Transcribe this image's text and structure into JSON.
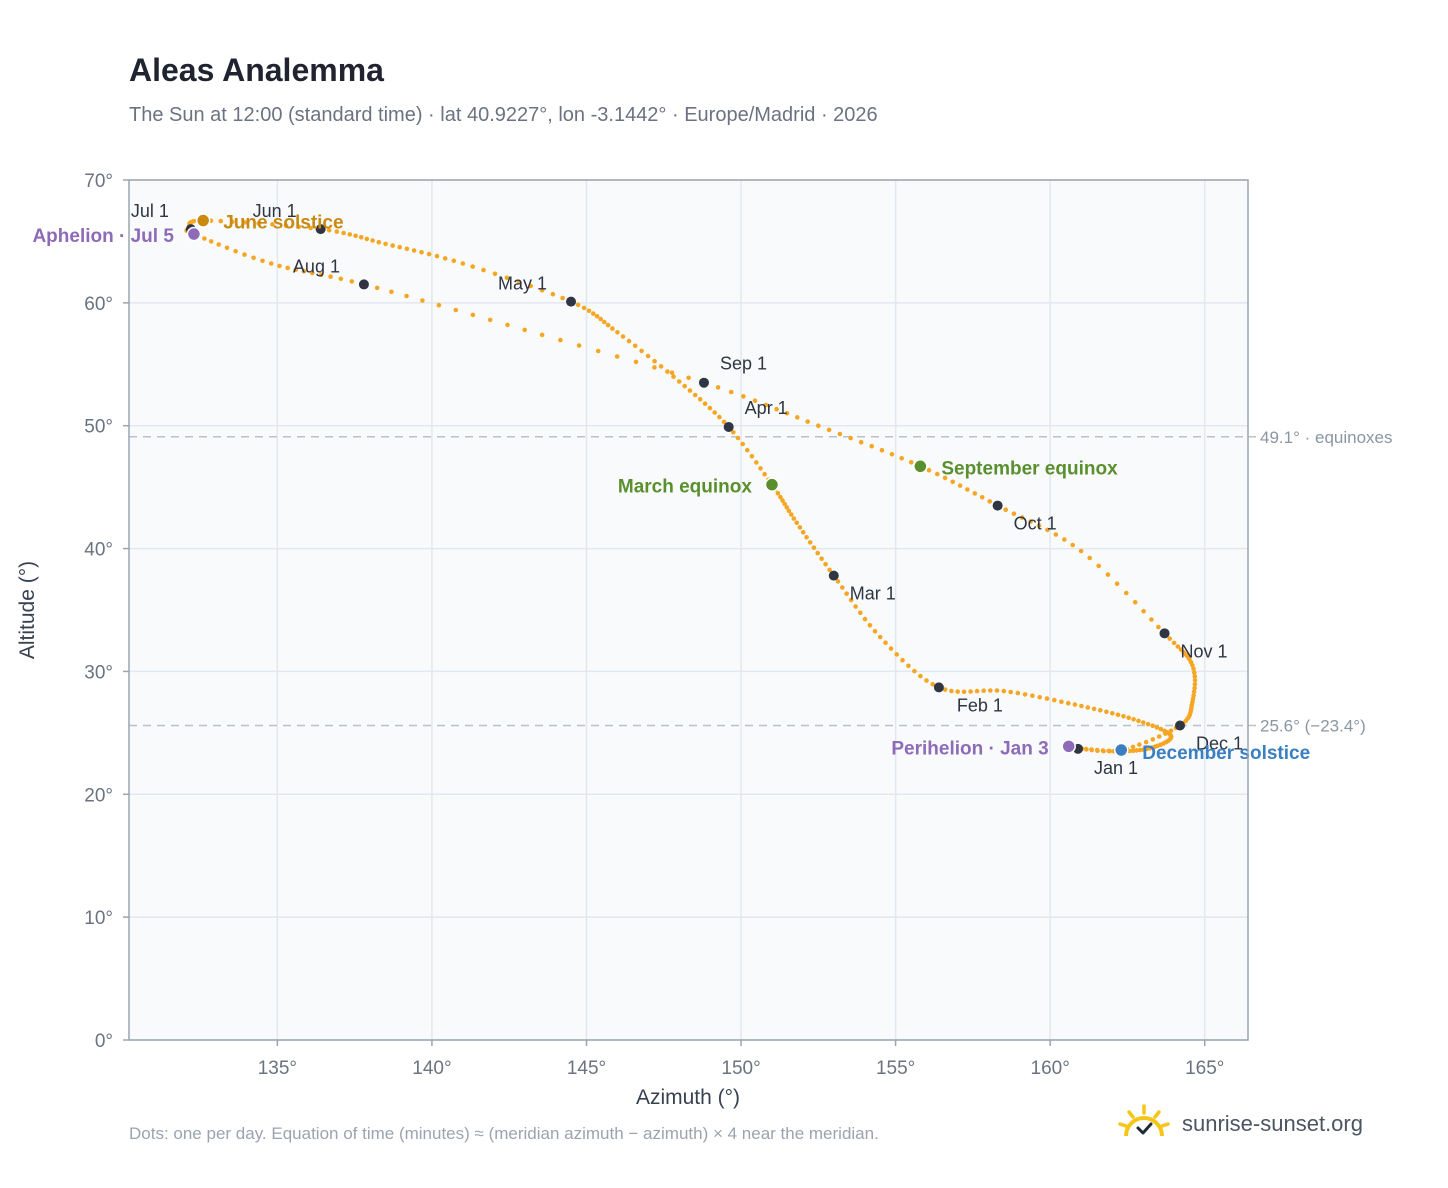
{
  "title": "Aleas Analemma",
  "subtitle": "The Sun at 12:00 (standard time) · lat 40.9227°, lon -3.1442° · Europe/Madrid · 2026",
  "footnote": "Dots: one per day. Equation of time (minutes) ≈ (meridian azimuth − azimuth) × 4 near the meridian.",
  "brand": {
    "name": "sunrise-sunset.org",
    "icon": "sun-logo-icon"
  },
  "colors": {
    "curve": "#f5a623",
    "month_marker": "#2f3542",
    "solstice_june": "#c98a12",
    "solstice_december": "#3a7fc1",
    "equinox": "#5a8f2e",
    "apsis": "#8e6bb8",
    "reference_line": "#b8c2cc",
    "plot_background": "#f8fafc",
    "plot_border": "#9aa5b1",
    "grid": "#e3e8ee"
  },
  "chart_data": {
    "type": "scatter",
    "xlabel": "Azimuth (°)",
    "ylabel": "Altitude (°)",
    "xlim": [
      130.2,
      166.4
    ],
    "ylim": [
      0,
      70
    ],
    "xticks": [
      135,
      140,
      145,
      150,
      155,
      160,
      165
    ],
    "xtick_labels": [
      "135°",
      "140°",
      "145°",
      "150°",
      "155°",
      "160°",
      "165°"
    ],
    "yticks": [
      0,
      10,
      20,
      30,
      40,
      50,
      60,
      70
    ],
    "ytick_labels": [
      "0°",
      "10°",
      "20°",
      "30°",
      "40°",
      "50°",
      "60°",
      "70°"
    ],
    "grid": true,
    "series": [
      {
        "points_per_day": true,
        "key_points": [
          [
            160.8,
            23.8
          ],
          [
            162.2,
            23.5
          ],
          [
            163.3,
            23.8
          ],
          [
            163.9,
            24.8
          ],
          [
            162.7,
            26.1
          ],
          [
            160.8,
            27.3
          ],
          [
            158.5,
            28.4
          ],
          [
            156.4,
            28.7
          ],
          [
            154.5,
            32.8
          ],
          [
            153.0,
            37.8
          ],
          [
            151.8,
            42.1
          ],
          [
            151.0,
            45.2
          ],
          [
            149.6,
            49.9
          ],
          [
            148.0,
            53.6
          ],
          [
            146.0,
            57.6
          ],
          [
            144.5,
            60.1
          ],
          [
            141.0,
            63.2
          ],
          [
            138.5,
            64.8
          ],
          [
            136.4,
            66.0
          ],
          [
            132.6,
            66.7
          ],
          [
            132.2,
            66.0
          ],
          [
            132.3,
            65.6
          ],
          [
            134.8,
            63.2
          ],
          [
            137.8,
            61.5
          ],
          [
            143.0,
            57.8
          ],
          [
            148.8,
            53.5
          ],
          [
            152.5,
            50.0
          ],
          [
            155.8,
            46.7
          ],
          [
            158.3,
            43.5
          ],
          [
            161.0,
            39.8
          ],
          [
            163.7,
            33.1
          ],
          [
            164.6,
            30.5
          ],
          [
            164.6,
            27.5
          ],
          [
            164.2,
            25.6
          ],
          [
            162.3,
            23.6
          ],
          [
            160.8,
            23.8
          ]
        ]
      }
    ],
    "month_markers": [
      {
        "label": "Jan 1",
        "az": 160.9,
        "alt": 23.7
      },
      {
        "label": "Feb 1",
        "az": 156.4,
        "alt": 28.7
      },
      {
        "label": "Mar 1",
        "az": 153.0,
        "alt": 37.8
      },
      {
        "label": "Apr 1",
        "az": 149.6,
        "alt": 49.9
      },
      {
        "label": "May 1",
        "az": 144.5,
        "alt": 60.1
      },
      {
        "label": "Jun 1",
        "az": 136.4,
        "alt": 66.0
      },
      {
        "label": "Jul 1",
        "az": 132.2,
        "alt": 66.0
      },
      {
        "label": "Aug 1",
        "az": 137.8,
        "alt": 61.5
      },
      {
        "label": "Sep 1",
        "az": 148.8,
        "alt": 53.5
      },
      {
        "label": "Oct 1",
        "az": 158.3,
        "alt": 43.5
      },
      {
        "label": "Nov 1",
        "az": 163.7,
        "alt": 33.1
      },
      {
        "label": "Dec 1",
        "az": 164.2,
        "alt": 25.6
      }
    ],
    "events": [
      {
        "label": "June solstice",
        "az": 132.6,
        "alt": 66.7,
        "kind": "solstice_june"
      },
      {
        "label": "December solstice",
        "az": 162.3,
        "alt": 23.6,
        "kind": "solstice_december"
      },
      {
        "label": "March equinox",
        "az": 151.0,
        "alt": 45.2,
        "kind": "equinox"
      },
      {
        "label": "September equinox",
        "az": 155.8,
        "alt": 46.7,
        "kind": "equinox"
      },
      {
        "label": "Aphelion · Jul 5",
        "az": 132.3,
        "alt": 65.6,
        "kind": "apsis"
      },
      {
        "label": "Perihelion · Jan 3",
        "az": 160.6,
        "alt": 23.9,
        "kind": "apsis"
      }
    ],
    "reference_lines": [
      {
        "label": "49.1° · equinoxes",
        "alt": 49.1
      },
      {
        "label": "25.6° (−23.4°)",
        "alt": 25.6
      }
    ]
  }
}
